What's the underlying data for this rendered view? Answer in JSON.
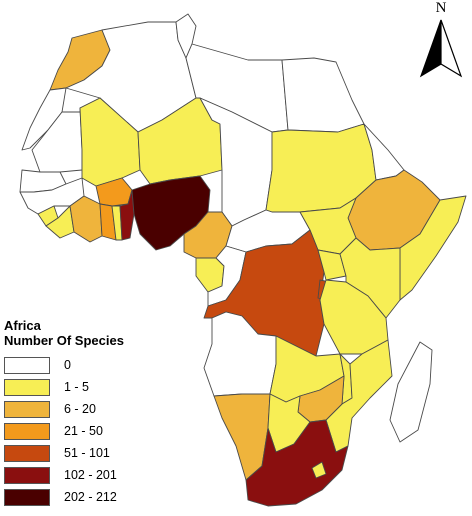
{
  "legend": {
    "title": "Africa",
    "subtitle": "Number Of Species",
    "classes": [
      {
        "label": "0",
        "color": "#ffffff"
      },
      {
        "label": "1 - 5",
        "color": "#f7ee55"
      },
      {
        "label": "6 - 20",
        "color": "#efb43c"
      },
      {
        "label": "21 - 50",
        "color": "#f39a1c"
      },
      {
        "label": "51 - 101",
        "color": "#c6490f"
      },
      {
        "label": "102 - 201",
        "color": "#8a0f0f"
      },
      {
        "label": "202 - 212",
        "color": "#4a0000"
      }
    ]
  },
  "north_arrow": {
    "label": "N"
  },
  "countries": [
    {
      "id": "morocco",
      "class": 2
    },
    {
      "id": "western-sahara",
      "class": 0
    },
    {
      "id": "algeria",
      "class": 0
    },
    {
      "id": "tunisia",
      "class": 0
    },
    {
      "id": "libya",
      "class": 0
    },
    {
      "id": "egypt",
      "class": 0
    },
    {
      "id": "mauritania",
      "class": 0
    },
    {
      "id": "mali",
      "class": 1
    },
    {
      "id": "niger",
      "class": 1
    },
    {
      "id": "chad",
      "class": 0
    },
    {
      "id": "sudan",
      "class": 1
    },
    {
      "id": "eritrea",
      "class": 0
    },
    {
      "id": "ethiopia",
      "class": 2
    },
    {
      "id": "somalia",
      "class": 1
    },
    {
      "id": "senegal",
      "class": 0
    },
    {
      "id": "guinea",
      "class": 0
    },
    {
      "id": "sierra-leone",
      "class": 1
    },
    {
      "id": "liberia",
      "class": 1
    },
    {
      "id": "cote-divoire",
      "class": 2
    },
    {
      "id": "burkina-faso",
      "class": 3
    },
    {
      "id": "ghana",
      "class": 3
    },
    {
      "id": "togo",
      "class": 1
    },
    {
      "id": "benin",
      "class": 5
    },
    {
      "id": "nigeria",
      "class": 6
    },
    {
      "id": "cameroon",
      "class": 2
    },
    {
      "id": "central-african-republic",
      "class": 0
    },
    {
      "id": "south-sudan",
      "class": 1
    },
    {
      "id": "gabon",
      "class": 1
    },
    {
      "id": "congo",
      "class": 0
    },
    {
      "id": "dr-congo",
      "class": 4
    },
    {
      "id": "uganda",
      "class": 1
    },
    {
      "id": "kenya",
      "class": 1
    },
    {
      "id": "rwanda-burundi",
      "class": 4
    },
    {
      "id": "tanzania",
      "class": 1
    },
    {
      "id": "angola",
      "class": 0
    },
    {
      "id": "zambia",
      "class": 1
    },
    {
      "id": "malawi",
      "class": 1
    },
    {
      "id": "mozambique",
      "class": 1
    },
    {
      "id": "zimbabwe",
      "class": 2
    },
    {
      "id": "namibia",
      "class": 2
    },
    {
      "id": "botswana",
      "class": 1
    },
    {
      "id": "south-africa",
      "class": 5
    },
    {
      "id": "lesotho",
      "class": 1
    },
    {
      "id": "madagascar",
      "class": 0
    }
  ]
}
